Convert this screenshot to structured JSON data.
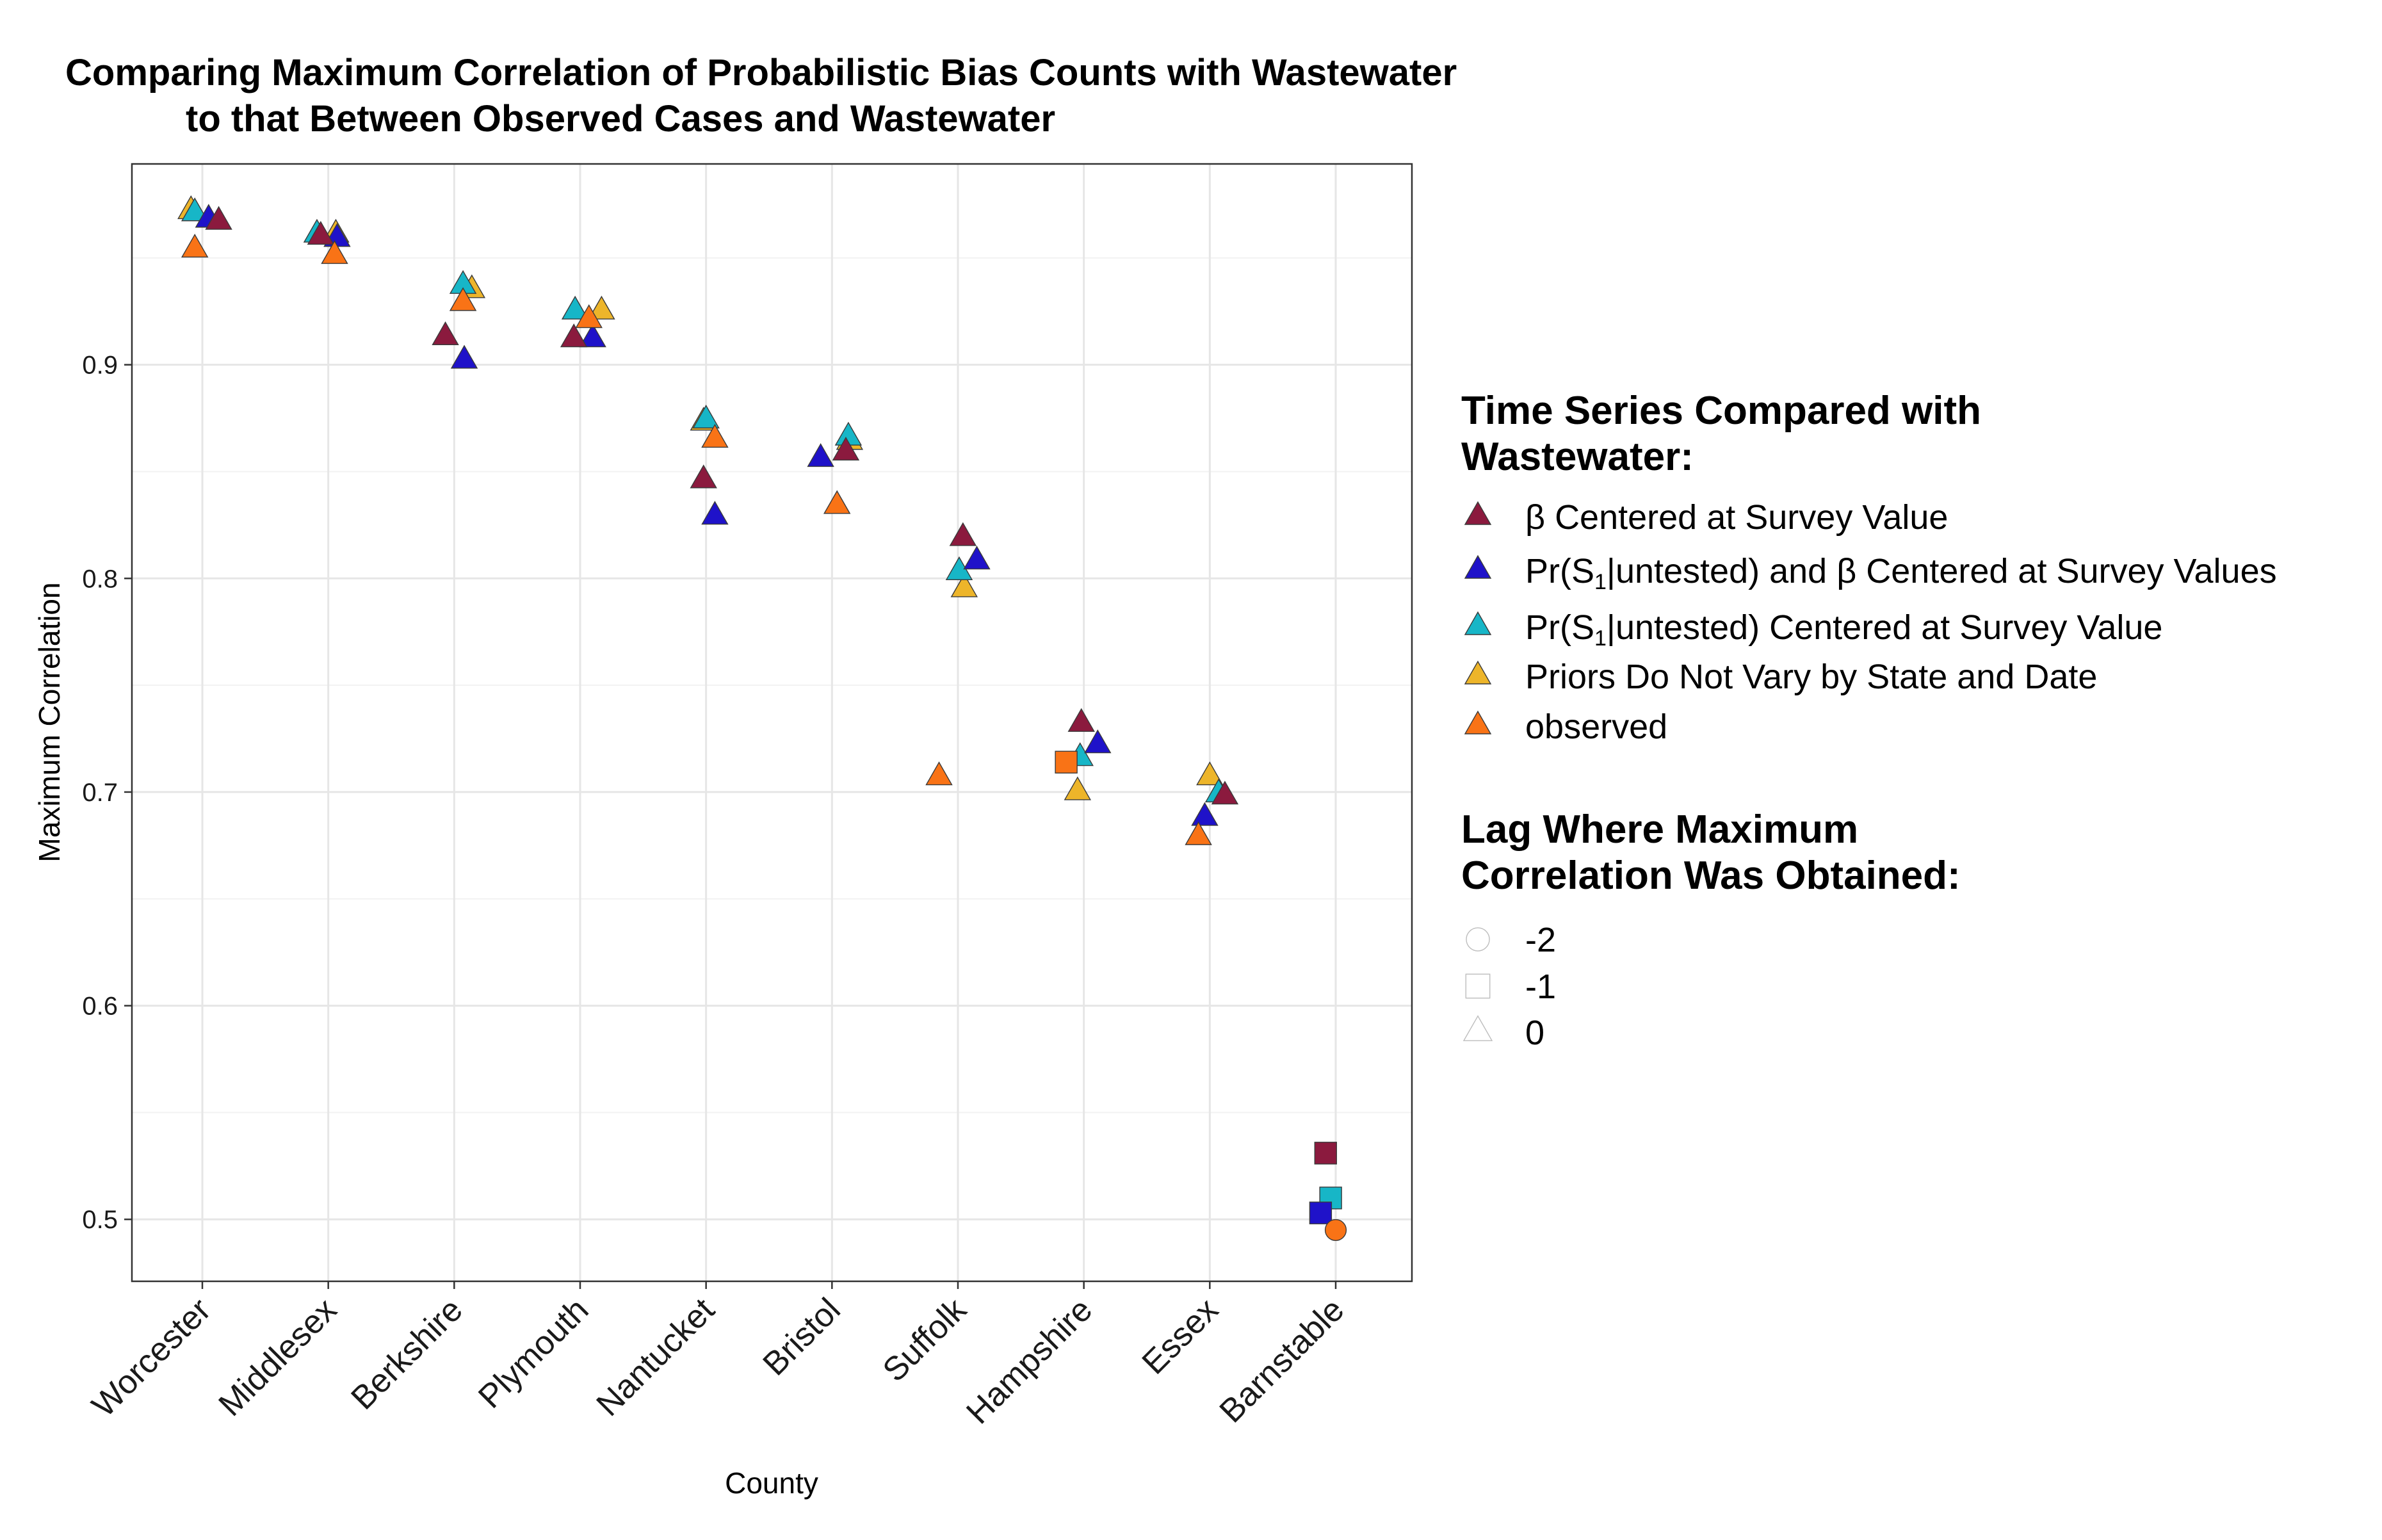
{
  "chart_data": {
    "type": "scatter",
    "title_lines": [
      "Comparing Maximum Correlation of Probabilistic Bias Counts with Wastewater",
      "to that Between Observed Cases and Wastewater"
    ],
    "xlabel": "County",
    "ylabel": "Maximum Correlation",
    "categories": [
      "Worcester",
      "Middlesex",
      "Berkshire",
      "Plymouth",
      "Nantucket",
      "Bristol",
      "Suffolk",
      "Hampshire",
      "Essex",
      "Barnstable"
    ],
    "yticks": [
      {
        "value": 0.5,
        "label": "0.5"
      },
      {
        "value": 0.6,
        "label": "0.6"
      },
      {
        "value": 0.7,
        "label": "0.7"
      },
      {
        "value": 0.8,
        "label": "0.8"
      },
      {
        "value": 0.9,
        "label": "0.9"
      }
    ],
    "ylim": [
      0.471,
      0.994
    ],
    "grid": true,
    "color_legend": {
      "title_lines": [
        "Time Series Compared with",
        "Wastewater:"
      ],
      "items": [
        {
          "series": "beta",
          "color": "#8B1A3E",
          "parts": [
            {
              "text": "β Centered at Survey Value"
            }
          ]
        },
        {
          "series": "pr_beta",
          "color": "#1F12C9",
          "parts": [
            {
              "text": "Pr(S"
            },
            {
              "text": "1",
              "sub": true
            },
            {
              "text": "|untested) and β Centered at Survey Values"
            }
          ]
        },
        {
          "series": "pr",
          "color": "#17B6C7",
          "parts": [
            {
              "text": "Pr(S"
            },
            {
              "text": "1",
              "sub": true
            },
            {
              "text": "|untested) Centered at Survey Value"
            }
          ]
        },
        {
          "series": "priors",
          "color": "#EDB52A",
          "parts": [
            {
              "text": "Priors Do Not Vary by State and Date"
            }
          ]
        },
        {
          "series": "observed",
          "color": "#F97316",
          "parts": [
            {
              "text": "observed"
            }
          ]
        }
      ]
    },
    "shape_legend": {
      "title_lines": [
        "Lag Where Maximum",
        "Correlation Was Obtained:"
      ],
      "items": [
        {
          "lag": -2,
          "label": "-2",
          "shape": "circle"
        },
        {
          "lag": -1,
          "label": "-1",
          "shape": "square"
        },
        {
          "lag": 0,
          "label": "0",
          "shape": "triangle"
        }
      ]
    },
    "series": [
      {
        "key": "priors",
        "points": [
          {
            "x": "Worcester",
            "jitter": -0.09,
            "y": 0.972,
            "lag": 0
          },
          {
            "x": "Middlesex",
            "jitter": 0.06,
            "y": 0.961,
            "lag": 0
          },
          {
            "x": "Berkshire",
            "jitter": 0.14,
            "y": 0.935,
            "lag": 0
          },
          {
            "x": "Plymouth",
            "jitter": 0.17,
            "y": 0.925,
            "lag": 0
          },
          {
            "x": "Nantucket",
            "jitter": -0.02,
            "y": 0.873,
            "lag": 0
          },
          {
            "x": "Bristol",
            "jitter": 0.14,
            "y": 0.864,
            "lag": 0
          },
          {
            "x": "Suffolk",
            "jitter": 0.05,
            "y": 0.795,
            "lag": 0
          },
          {
            "x": "Hampshire",
            "jitter": -0.05,
            "y": 0.7,
            "lag": 0
          },
          {
            "x": "Essex",
            "jitter": 0.0,
            "y": 0.707,
            "lag": 0
          }
        ]
      },
      {
        "key": "pr",
        "points": [
          {
            "x": "Worcester",
            "jitter": -0.06,
            "y": 0.971,
            "lag": 0
          },
          {
            "x": "Middlesex",
            "jitter": -0.09,
            "y": 0.961,
            "lag": 0
          },
          {
            "x": "Berkshire",
            "jitter": 0.07,
            "y": 0.937,
            "lag": 0
          },
          {
            "x": "Plymouth",
            "jitter": -0.04,
            "y": 0.925,
            "lag": 0
          },
          {
            "x": "Nantucket",
            "jitter": 0.0,
            "y": 0.874,
            "lag": 0
          },
          {
            "x": "Bristol",
            "jitter": 0.13,
            "y": 0.866,
            "lag": 0
          },
          {
            "x": "Suffolk",
            "jitter": 0.01,
            "y": 0.803,
            "lag": 0
          },
          {
            "x": "Hampshire",
            "jitter": -0.03,
            "y": 0.716,
            "lag": 0
          },
          {
            "x": "Essex",
            "jitter": 0.07,
            "y": 0.699,
            "lag": 0
          },
          {
            "x": "Barnstable",
            "jitter": -0.04,
            "y": 0.51,
            "lag": -1
          }
        ]
      },
      {
        "key": "pr_beta",
        "points": [
          {
            "x": "Worcester",
            "jitter": 0.05,
            "y": 0.968,
            "lag": 0
          },
          {
            "x": "Middlesex",
            "jitter": 0.07,
            "y": 0.959,
            "lag": 0
          },
          {
            "x": "Berkshire",
            "jitter": 0.08,
            "y": 0.902,
            "lag": 0
          },
          {
            "x": "Plymouth",
            "jitter": 0.1,
            "y": 0.912,
            "lag": 0
          },
          {
            "x": "Nantucket",
            "jitter": 0.07,
            "y": 0.829,
            "lag": 0
          },
          {
            "x": "Bristol",
            "jitter": -0.09,
            "y": 0.856,
            "lag": 0
          },
          {
            "x": "Suffolk",
            "jitter": 0.15,
            "y": 0.808,
            "lag": 0
          },
          {
            "x": "Hampshire",
            "jitter": 0.11,
            "y": 0.722,
            "lag": 0
          },
          {
            "x": "Essex",
            "jitter": -0.04,
            "y": 0.688,
            "lag": 0
          },
          {
            "x": "Barnstable",
            "jitter": -0.12,
            "y": 0.503,
            "lag": -1
          }
        ]
      },
      {
        "key": "beta",
        "points": [
          {
            "x": "Worcester",
            "jitter": 0.13,
            "y": 0.967,
            "lag": 0
          },
          {
            "x": "Middlesex",
            "jitter": -0.06,
            "y": 0.96,
            "lag": 0
          },
          {
            "x": "Berkshire",
            "jitter": -0.07,
            "y": 0.913,
            "lag": 0
          },
          {
            "x": "Plymouth",
            "jitter": -0.05,
            "y": 0.912,
            "lag": 0
          },
          {
            "x": "Nantucket",
            "jitter": -0.02,
            "y": 0.846,
            "lag": 0
          },
          {
            "x": "Bristol",
            "jitter": 0.11,
            "y": 0.859,
            "lag": 0
          },
          {
            "x": "Suffolk",
            "jitter": 0.04,
            "y": 0.819,
            "lag": 0
          },
          {
            "x": "Hampshire",
            "jitter": -0.02,
            "y": 0.732,
            "lag": 0
          },
          {
            "x": "Essex",
            "jitter": 0.12,
            "y": 0.698,
            "lag": 0
          },
          {
            "x": "Barnstable",
            "jitter": -0.08,
            "y": 0.531,
            "lag": -1
          }
        ]
      },
      {
        "key": "observed",
        "points": [
          {
            "x": "Worcester",
            "jitter": -0.06,
            "y": 0.954,
            "lag": 0
          },
          {
            "x": "Middlesex",
            "jitter": 0.05,
            "y": 0.951,
            "lag": 0
          },
          {
            "x": "Berkshire",
            "jitter": 0.07,
            "y": 0.929,
            "lag": 0
          },
          {
            "x": "Plymouth",
            "jitter": 0.07,
            "y": 0.921,
            "lag": 0
          },
          {
            "x": "Nantucket",
            "jitter": 0.07,
            "y": 0.865,
            "lag": 0
          },
          {
            "x": "Bristol",
            "jitter": 0.04,
            "y": 0.834,
            "lag": 0
          },
          {
            "x": "Suffolk",
            "jitter": -0.15,
            "y": 0.707,
            "lag": 0
          },
          {
            "x": "Hampshire",
            "jitter": -0.14,
            "y": 0.714,
            "lag": -1
          },
          {
            "x": "Essex",
            "jitter": -0.09,
            "y": 0.679,
            "lag": 0
          },
          {
            "x": "Barnstable",
            "jitter": 0.0,
            "y": 0.495,
            "lag": -2
          }
        ]
      }
    ]
  }
}
